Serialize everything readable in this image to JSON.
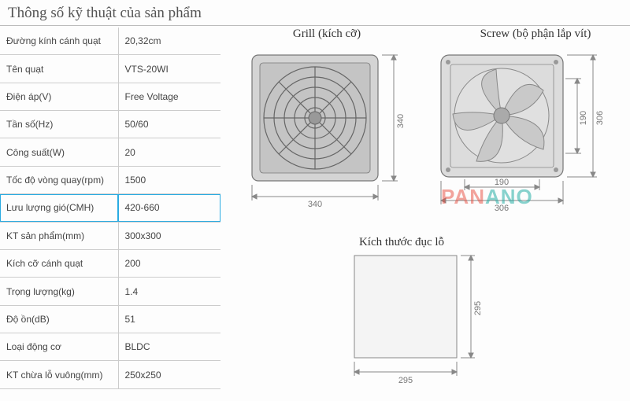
{
  "title": "Thông số kỹ thuật của sản phẩm",
  "specs": {
    "rows": [
      {
        "label": "Đường kính cánh quạt",
        "value": "20,32cm"
      },
      {
        "label": "Tên quạt",
        "value": "VTS-20WI"
      },
      {
        "label": "Điện áp(V)",
        "value": "Free Voltage"
      },
      {
        "label": "Tần số(Hz)",
        "value": "50/60"
      },
      {
        "label": "Công suất(W)",
        "value": "20"
      },
      {
        "label": "Tốc độ vòng quay(rpm)",
        "value": "1500"
      },
      {
        "label": "Lưu lượng gió(CMH)",
        "value": "420-660"
      },
      {
        "label": "KT sản phẩm(mm)",
        "value": "300x300"
      },
      {
        "label": "Kích cỡ cánh quạt",
        "value": "200"
      },
      {
        "label": "Trọng lượng(kg)",
        "value": "1.4"
      },
      {
        "label": "Độ ồn(dB)",
        "value": "51"
      },
      {
        "label": "Loại động cơ",
        "value": "BLDC"
      },
      {
        "label": "KT chừa lỗ vuông(mm)",
        "value": "250x250"
      }
    ],
    "highlight_index": 6
  },
  "diagrams": {
    "grill": {
      "label": "Grill (kích cỡ)",
      "width_mm": "340",
      "height_mm": "340",
      "frame_fill": "#d4d4d4",
      "frame_stroke": "#777",
      "grill_stroke": "#666"
    },
    "screw": {
      "label": "Screw (bộ phận lắp vít)",
      "outer_w_mm": "306",
      "outer_h_mm": "306",
      "inner_w_mm": "190",
      "inner_h_mm": "190",
      "frame_fill": "#dcdcdc",
      "frame_stroke": "#777",
      "blade_fill": "#c9c9c9"
    },
    "hole": {
      "label": "Kích thước đục lỗ",
      "w_mm": "295",
      "h_mm": "295",
      "fill": "#f4f4f4",
      "stroke": "#888"
    },
    "dim_stroke": "#888"
  },
  "watermark": {
    "part1": "PAN",
    "part2": "ANO"
  }
}
